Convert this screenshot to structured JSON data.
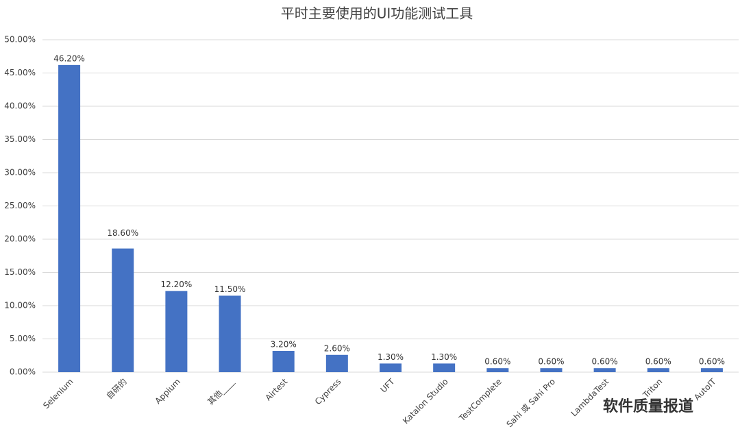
{
  "chart_data": {
    "type": "bar",
    "title": "平时主要使用的UI功能测试工具",
    "categories": [
      "Selenium",
      "自研的",
      "Appium",
      "其他____",
      "Airtest",
      "Cypress",
      "UFT",
      "Katalon Studio",
      "TestComplete",
      "Sahi 或 Sahi Pro",
      "LambdaTest",
      "Triton",
      "AutoIT"
    ],
    "values": [
      46.2,
      18.6,
      12.2,
      11.5,
      3.2,
      2.6,
      1.3,
      1.3,
      0.6,
      0.6,
      0.6,
      0.6,
      0.6
    ],
    "value_labels": [
      "46.20%",
      "18.60%",
      "12.20%",
      "11.50%",
      "3.20%",
      "2.60%",
      "1.30%",
      "1.30%",
      "0.60%",
      "0.60%",
      "0.60%",
      "0.60%",
      "0.60%"
    ],
    "color": "#4472c4",
    "ylim": [
      0,
      50
    ],
    "yticks": [
      {
        "value": 0,
        "label": "0.00%"
      },
      {
        "value": 5,
        "label": "5.00%"
      },
      {
        "value": 10,
        "label": "10.00%"
      },
      {
        "value": 15,
        "label": "15.00%"
      },
      {
        "value": 20,
        "label": "20.00%"
      },
      {
        "value": 25,
        "label": "25.00%"
      },
      {
        "value": 30,
        "label": "30.00%"
      },
      {
        "value": 35,
        "label": "35.00%"
      },
      {
        "value": 40,
        "label": "40.00%"
      },
      {
        "value": 45,
        "label": "45.00%"
      },
      {
        "value": 50,
        "label": "50.00%"
      }
    ],
    "grid": true
  },
  "watermark": "软件质量报道"
}
